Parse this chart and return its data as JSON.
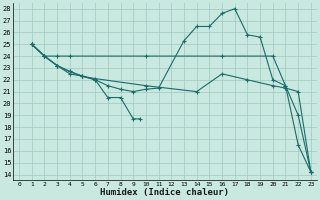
{
  "xlabel": "Humidex (Indice chaleur)",
  "xlim": [
    -0.5,
    23.5
  ],
  "ylim": [
    13.5,
    28.5
  ],
  "xticks": [
    0,
    1,
    2,
    3,
    4,
    5,
    6,
    7,
    8,
    9,
    10,
    11,
    12,
    13,
    14,
    15,
    16,
    17,
    18,
    19,
    20,
    21,
    22,
    23
  ],
  "yticks": [
    14,
    15,
    16,
    17,
    18,
    19,
    20,
    21,
    22,
    23,
    24,
    25,
    26,
    27,
    28
  ],
  "bg_color": "#c8e8e0",
  "grid_color": "#a0c8c0",
  "line_color": "#1a6b6b",
  "lines": [
    {
      "x": [
        1,
        2,
        3,
        4,
        10,
        16,
        20,
        21,
        22,
        23
      ],
      "y": [
        25,
        24,
        24,
        24,
        24,
        24,
        24,
        21.5,
        19,
        14.2
      ]
    },
    {
      "x": [
        1,
        2,
        3,
        4,
        5,
        6,
        10,
        14,
        16,
        18,
        20,
        21,
        22,
        23
      ],
      "y": [
        25,
        24,
        23.2,
        22.5,
        22.3,
        22.1,
        21.5,
        21.0,
        22.5,
        22.0,
        21.5,
        21.3,
        21.0,
        14.2
      ]
    },
    {
      "x": [
        1,
        2,
        3,
        4,
        5,
        6,
        7,
        8,
        9,
        9.5
      ],
      "y": [
        25,
        24,
        23.2,
        22.7,
        22.3,
        22.0,
        20.5,
        20.5,
        18.7,
        18.7
      ]
    },
    {
      "x": [
        1,
        2,
        3,
        4,
        5,
        6,
        7,
        8,
        9,
        10,
        11,
        13,
        14,
        15,
        16,
        17,
        18,
        19,
        20,
        21,
        22,
        23
      ],
      "y": [
        25,
        24,
        23.2,
        22.7,
        22.3,
        22.0,
        21.5,
        21.2,
        21.0,
        21.2,
        21.3,
        25.3,
        26.5,
        26.5,
        27.6,
        28.0,
        25.8,
        25.6,
        22.0,
        21.5,
        16.5,
        14.2
      ]
    }
  ]
}
